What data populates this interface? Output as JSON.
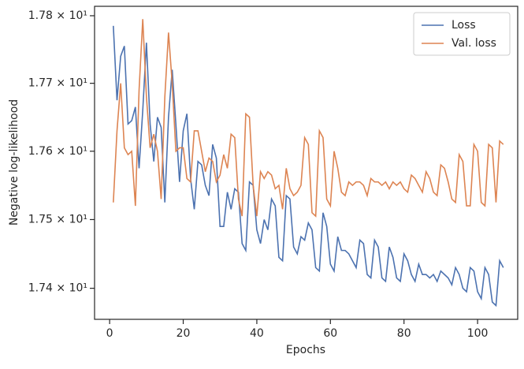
{
  "chart_data": {
    "type": "line",
    "xlabel": "Epochs",
    "ylabel": "Negative log-likelihood",
    "x": [
      1,
      2,
      3,
      4,
      5,
      6,
      7,
      8,
      9,
      10,
      11,
      12,
      13,
      14,
      15,
      16,
      17,
      18,
      19,
      20,
      21,
      22,
      23,
      24,
      25,
      26,
      27,
      28,
      29,
      30,
      31,
      32,
      33,
      34,
      35,
      36,
      37,
      38,
      39,
      40,
      41,
      42,
      43,
      44,
      45,
      46,
      47,
      48,
      49,
      50,
      51,
      52,
      53,
      54,
      55,
      56,
      57,
      58,
      59,
      60,
      61,
      62,
      63,
      64,
      65,
      66,
      67,
      68,
      69,
      70,
      71,
      72,
      73,
      74,
      75,
      76,
      77,
      78,
      79,
      80,
      81,
      82,
      83,
      84,
      85,
      86,
      87,
      88,
      89,
      90,
      91,
      92,
      93,
      94,
      95,
      96,
      97,
      98,
      99,
      100,
      101,
      102,
      103,
      104,
      105,
      106,
      107
    ],
    "series": [
      {
        "name": "Loss",
        "color": "#4c72b0",
        "values": [
          17.785,
          17.675,
          17.74,
          17.755,
          17.64,
          17.645,
          17.665,
          17.575,
          17.66,
          17.76,
          17.64,
          17.585,
          17.65,
          17.635,
          17.525,
          17.65,
          17.72,
          17.64,
          17.555,
          17.63,
          17.655,
          17.56,
          17.515,
          17.585,
          17.58,
          17.55,
          17.535,
          17.61,
          17.59,
          17.49,
          17.49,
          17.54,
          17.515,
          17.545,
          17.54,
          17.465,
          17.455,
          17.555,
          17.55,
          17.485,
          17.465,
          17.5,
          17.485,
          17.53,
          17.52,
          17.445,
          17.44,
          17.535,
          17.53,
          17.46,
          17.45,
          17.475,
          17.47,
          17.495,
          17.485,
          17.43,
          17.425,
          17.51,
          17.49,
          17.435,
          17.425,
          17.475,
          17.455,
          17.455,
          17.45,
          17.44,
          17.43,
          17.47,
          17.465,
          17.42,
          17.415,
          17.47,
          17.46,
          17.415,
          17.41,
          17.46,
          17.445,
          17.415,
          17.41,
          17.45,
          17.44,
          17.42,
          17.41,
          17.435,
          17.42,
          17.42,
          17.415,
          17.42,
          17.41,
          17.425,
          17.42,
          17.415,
          17.405,
          17.43,
          17.42,
          17.4,
          17.395,
          17.43,
          17.425,
          17.395,
          17.385,
          17.43,
          17.42,
          17.38,
          17.375,
          17.44,
          17.43
        ]
      },
      {
        "name": "Val. loss",
        "color": "#dd8452",
        "values": [
          17.525,
          17.63,
          17.7,
          17.605,
          17.595,
          17.6,
          17.52,
          17.69,
          17.795,
          17.68,
          17.605,
          17.625,
          17.6,
          17.53,
          17.68,
          17.775,
          17.7,
          17.6,
          17.605,
          17.605,
          17.56,
          17.555,
          17.63,
          17.63,
          17.6,
          17.57,
          17.59,
          17.585,
          17.555,
          17.565,
          17.595,
          17.575,
          17.625,
          17.62,
          17.53,
          17.505,
          17.655,
          17.65,
          17.55,
          17.505,
          17.57,
          17.56,
          17.57,
          17.565,
          17.545,
          17.55,
          17.515,
          17.575,
          17.545,
          17.535,
          17.54,
          17.55,
          17.62,
          17.61,
          17.51,
          17.505,
          17.63,
          17.62,
          17.53,
          17.52,
          17.6,
          17.575,
          17.54,
          17.535,
          17.555,
          17.55,
          17.555,
          17.555,
          17.55,
          17.535,
          17.56,
          17.555,
          17.555,
          17.55,
          17.555,
          17.545,
          17.555,
          17.55,
          17.555,
          17.545,
          17.54,
          17.565,
          17.56,
          17.55,
          17.54,
          17.57,
          17.56,
          17.54,
          17.535,
          17.58,
          17.575,
          17.555,
          17.53,
          17.525,
          17.595,
          17.585,
          17.52,
          17.52,
          17.61,
          17.6,
          17.525,
          17.52,
          17.61,
          17.605,
          17.525,
          17.615,
          17.61
        ]
      }
    ],
    "xlim": [
      -4.1,
      110.9
    ],
    "xticks": [
      0,
      20,
      40,
      60,
      80,
      100
    ],
    "ylim": [
      17.355,
      17.814
    ],
    "ylog": true,
    "yticks": [
      {
        "value": 17.4,
        "label": "1.74 × 10¹"
      },
      {
        "value": 17.5,
        "label": "1.75 × 10¹"
      },
      {
        "value": 17.6,
        "label": "1.76 × 10¹"
      },
      {
        "value": 17.7,
        "label": "1.77 × 10¹"
      },
      {
        "value": 17.8,
        "label": "1.78 × 10¹"
      }
    ],
    "legend": "upper right"
  }
}
